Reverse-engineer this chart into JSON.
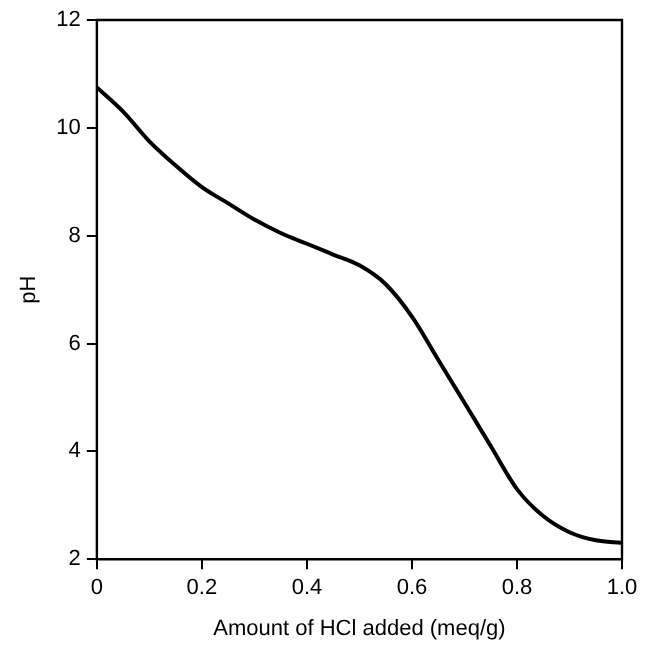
{
  "chart_data": {
    "type": "line",
    "xlabel": "Amount of HCl added (meq/g)",
    "ylabel": "pH",
    "x": [
      0,
      0.05,
      0.1,
      0.15,
      0.2,
      0.25,
      0.3,
      0.35,
      0.4,
      0.45,
      0.5,
      0.55,
      0.6,
      0.65,
      0.7,
      0.75,
      0.8,
      0.85,
      0.9,
      0.95,
      1.0
    ],
    "series": [
      {
        "color": "#000000",
        "values": [
          10.75,
          10.3,
          9.75,
          9.3,
          8.9,
          8.6,
          8.3,
          8.05,
          7.85,
          7.65,
          7.45,
          7.1,
          6.5,
          5.7,
          4.9,
          4.1,
          3.3,
          2.8,
          2.5,
          2.35,
          2.3
        ]
      }
    ],
    "xlim": [
      0,
      1
    ],
    "ylim": [
      2,
      12
    ],
    "xticks": [
      0,
      0.2,
      0.4,
      0.6,
      0.8,
      {
        "value": 1,
        "label": "1.0"
      }
    ],
    "yticks": [
      2,
      4,
      6,
      8,
      10,
      12
    ],
    "grid": false,
    "legend": false,
    "marker": "none",
    "line_style": "solid"
  }
}
